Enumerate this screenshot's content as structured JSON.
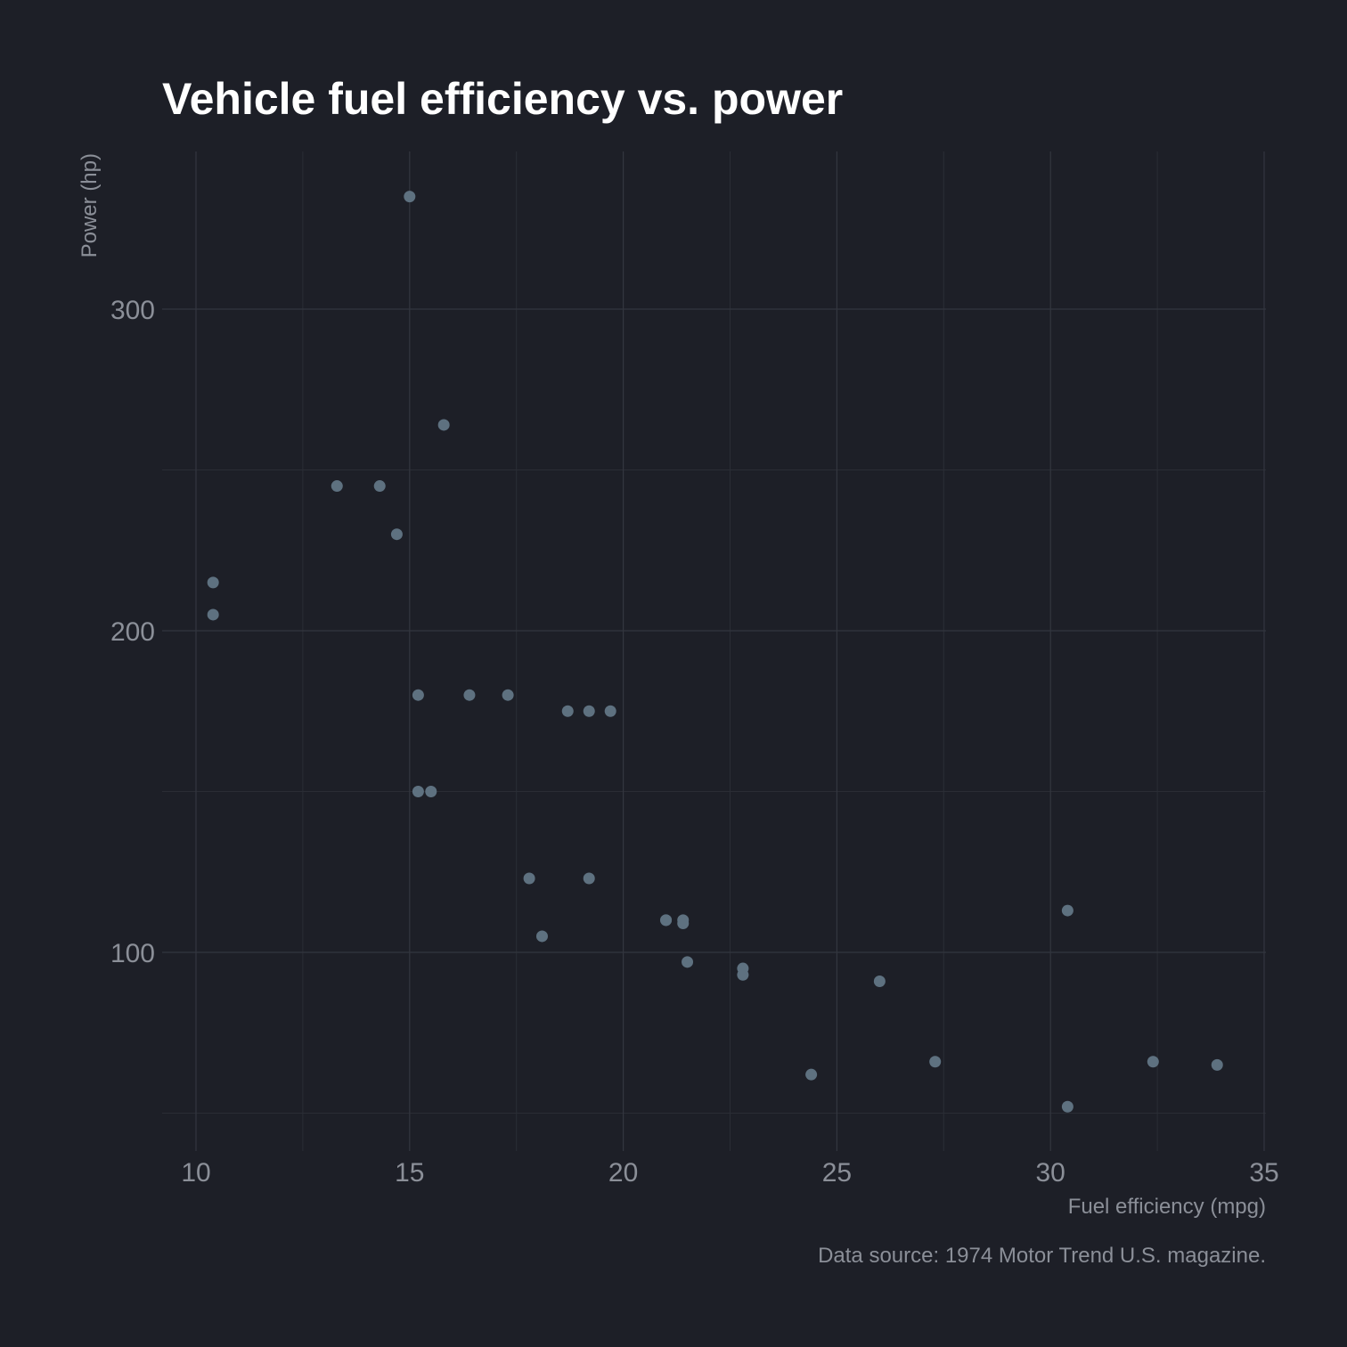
{
  "chart_data": {
    "type": "scatter",
    "title": "Vehicle fuel efficiency vs. power",
    "xlabel": "Fuel efficiency (mpg)",
    "ylabel": "Power (hp)",
    "caption": "Data source: 1974 Motor Trend U.S. magazine.",
    "xlim": [
      9.2,
      35.0
    ],
    "ylim": [
      44,
      355
    ],
    "x_ticks": [
      10,
      15,
      20,
      25,
      30,
      35
    ],
    "x_tick_labels": [
      "10",
      "15",
      "20",
      "25",
      "30",
      "35"
    ],
    "y_ticks": [
      100,
      200,
      300
    ],
    "y_tick_labels": [
      "100",
      "200",
      "300"
    ],
    "grid": true,
    "point_color": "#5e7180",
    "x": [
      21.0,
      21.0,
      22.8,
      21.4,
      18.7,
      18.1,
      14.3,
      24.4,
      22.8,
      19.2,
      17.8,
      16.4,
      17.3,
      15.2,
      10.4,
      10.4,
      14.7,
      32.4,
      30.4,
      33.9,
      21.5,
      15.5,
      15.2,
      13.3,
      19.2,
      27.3,
      26.0,
      30.4,
      15.8,
      19.7,
      15.0,
      21.4
    ],
    "y": [
      110,
      110,
      93,
      110,
      175,
      105,
      245,
      62,
      95,
      123,
      123,
      180,
      180,
      180,
      205,
      215,
      230,
      66,
      52,
      65,
      97,
      150,
      150,
      245,
      175,
      66,
      91,
      113,
      264,
      175,
      335,
      109
    ]
  },
  "colors": {
    "background": "#1d1f27",
    "title": "#ffffff",
    "text_muted": "#8b8f98",
    "point": "#5e7180"
  }
}
